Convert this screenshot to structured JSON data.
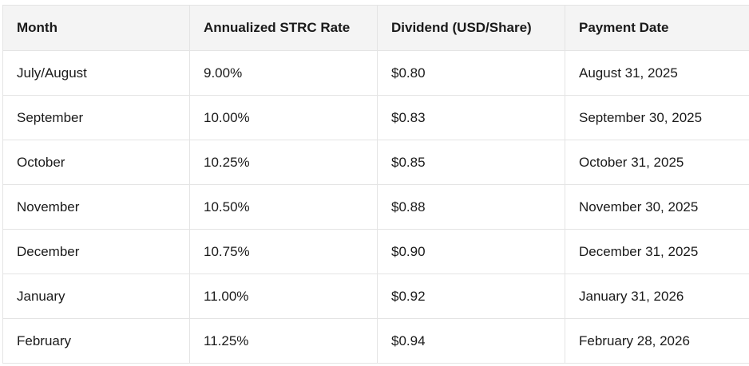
{
  "table": {
    "header": [
      "Month",
      "Annualized STRC Rate",
      "Dividend (USD/Share)",
      "Payment Date"
    ],
    "rows": [
      [
        "July/August",
        "9.00%",
        "$0.80",
        "August 31, 2025"
      ],
      [
        "September",
        "10.00%",
        "$0.83",
        "September 30, 2025"
      ],
      [
        "October",
        "10.25%",
        "$0.85",
        "October 31, 2025"
      ],
      [
        "November",
        "10.50%",
        "$0.88",
        "November 30, 2025"
      ],
      [
        "December",
        "10.75%",
        "$0.90",
        "December 31, 2025"
      ],
      [
        "January",
        "11.00%",
        "$0.92",
        "January 31, 2026"
      ],
      [
        "February",
        "11.25%",
        "$0.94",
        "February 28, 2026"
      ]
    ]
  }
}
